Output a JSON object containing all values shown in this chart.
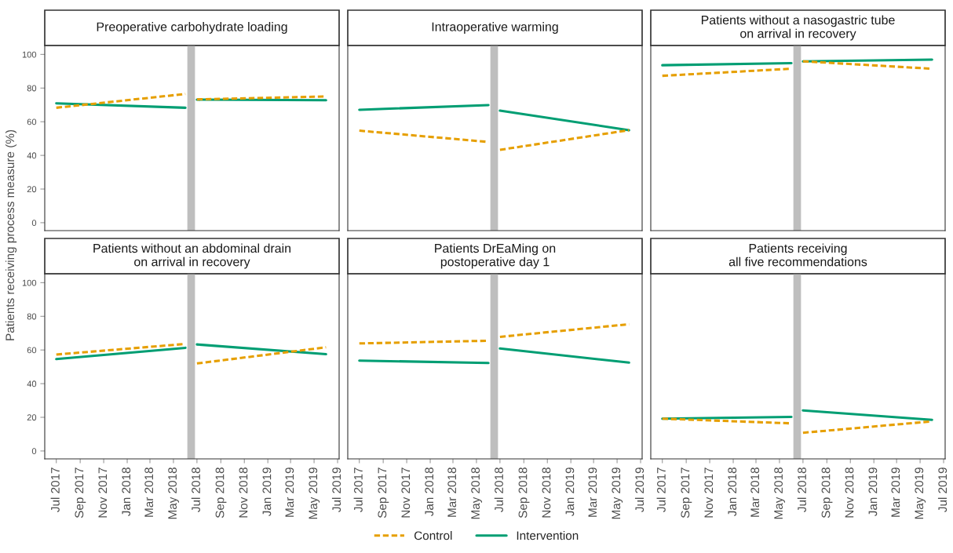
{
  "chart_data": [
    {
      "type": "line",
      "title": "Preoperative carbohydrate loading",
      "ylabel": "Patients receiving process measure (%)",
      "legend": "bottom",
      "tick_labels": "y",
      "grid": false,
      "x": [
        "2017-07-01",
        "2018-06-01",
        "2018-06-16",
        "2018-07-01",
        "2019-06-01"
      ],
      "series": [
        {
          "name": "Control",
          "color": "#e69f00",
          "line_style": "dashed",
          "values": [
            68.3,
            76.5,
            null,
            73.3,
            75.0
          ]
        },
        {
          "name": "Intervention",
          "color": "#009e73",
          "line_style": "solid",
          "values": [
            70.9,
            68.3,
            null,
            73.1,
            72.8
          ]
        }
      ],
      "ref_lines": [
        {
          "axis": "x",
          "value": "2018-06-16",
          "color": "#bebebe"
        }
      ],
      "xlim": [
        "2017-06-01",
        "2019-07-05"
      ],
      "ylim": [
        -4.7,
        105.3
      ],
      "yticks": [
        0,
        20,
        40,
        60,
        80,
        100
      ],
      "xticks": [
        {
          "value": "2017-07-01",
          "label": "Jul 2017"
        },
        {
          "value": "2017-09-01",
          "label": "Sep 2017"
        },
        {
          "value": "2017-11-01",
          "label": "Nov 2017"
        },
        {
          "value": "2018-01-01",
          "label": "Jan 2018"
        },
        {
          "value": "2018-03-01",
          "label": "Mar 2018"
        },
        {
          "value": "2018-05-01",
          "label": "May 2018"
        },
        {
          "value": "2018-07-01",
          "label": "Jul 2018"
        },
        {
          "value": "2018-09-01",
          "label": "Sep 2018"
        },
        {
          "value": "2018-11-01",
          "label": "Nov 2018"
        },
        {
          "value": "2019-01-01",
          "label": "Jan 2019"
        },
        {
          "value": "2019-03-01",
          "label": "Mar 2019"
        },
        {
          "value": "2019-05-01",
          "label": "May 2019"
        },
        {
          "value": "2019-07-01",
          "label": "Jul 2019"
        }
      ]
    },
    {
      "type": "line",
      "title": "Intraoperative warming",
      "tick_labels": false,
      "grid": false,
      "x": [
        "2017-07-01",
        "2018-06-01",
        "2018-06-16",
        "2018-07-01",
        "2019-06-01"
      ],
      "series": [
        {
          "name": "Control",
          "color": "#e69f00",
          "line_style": "dashed",
          "values": [
            54.7,
            48.0,
            null,
            43.3,
            55.0
          ]
        },
        {
          "name": "Intervention",
          "color": "#009e73",
          "line_style": "solid",
          "values": [
            67.1,
            69.9,
            null,
            66.6,
            55.0
          ]
        }
      ],
      "ref_lines": [
        {
          "axis": "x",
          "value": "2018-06-16",
          "color": "#bebebe"
        }
      ],
      "xlim": [
        "2017-06-01",
        "2019-07-05"
      ],
      "ylim": [
        -4.7,
        105.3
      ],
      "yticks": [
        0,
        20,
        40,
        60,
        80,
        100
      ],
      "xticks": [
        {
          "value": "2017-07-01",
          "label": "Jul 2017"
        },
        {
          "value": "2017-09-01",
          "label": "Sep 2017"
        },
        {
          "value": "2017-11-01",
          "label": "Nov 2017"
        },
        {
          "value": "2018-01-01",
          "label": "Jan 2018"
        },
        {
          "value": "2018-03-01",
          "label": "Mar 2018"
        },
        {
          "value": "2018-05-01",
          "label": "May 2018"
        },
        {
          "value": "2018-07-01",
          "label": "Jul 2018"
        },
        {
          "value": "2018-09-01",
          "label": "Sep 2018"
        },
        {
          "value": "2018-11-01",
          "label": "Nov 2018"
        },
        {
          "value": "2019-01-01",
          "label": "Jan 2019"
        },
        {
          "value": "2019-03-01",
          "label": "Mar 2019"
        },
        {
          "value": "2019-05-01",
          "label": "May 2019"
        },
        {
          "value": "2019-07-01",
          "label": "Jul 2019"
        }
      ]
    },
    {
      "type": "line",
      "title": "Patients without a nasogastric tube\non arrival in recovery",
      "tick_labels": false,
      "grid": false,
      "x": [
        "2017-07-01",
        "2018-06-01",
        "2018-06-16",
        "2018-07-01",
        "2019-06-01"
      ],
      "series": [
        {
          "name": "Control",
          "color": "#e69f00",
          "line_style": "dashed",
          "values": [
            87.3,
            91.5,
            null,
            95.9,
            91.5
          ]
        },
        {
          "name": "Intervention",
          "color": "#009e73",
          "line_style": "solid",
          "values": [
            93.6,
            94.8,
            null,
            95.9,
            96.9
          ]
        }
      ],
      "ref_lines": [
        {
          "axis": "x",
          "value": "2018-06-16",
          "color": "#bebebe"
        }
      ],
      "xlim": [
        "2017-06-01",
        "2019-07-05"
      ],
      "ylim": [
        -4.7,
        105.3
      ],
      "yticks": [
        0,
        20,
        40,
        60,
        80,
        100
      ],
      "xticks": [
        {
          "value": "2017-07-01",
          "label": "Jul 2017"
        },
        {
          "value": "2017-09-01",
          "label": "Sep 2017"
        },
        {
          "value": "2017-11-01",
          "label": "Nov 2017"
        },
        {
          "value": "2018-01-01",
          "label": "Jan 2018"
        },
        {
          "value": "2018-03-01",
          "label": "Mar 2018"
        },
        {
          "value": "2018-05-01",
          "label": "May 2018"
        },
        {
          "value": "2018-07-01",
          "label": "Jul 2018"
        },
        {
          "value": "2018-09-01",
          "label": "Sep 2018"
        },
        {
          "value": "2018-11-01",
          "label": "Nov 2018"
        },
        {
          "value": "2019-01-01",
          "label": "Jan 2019"
        },
        {
          "value": "2019-03-01",
          "label": "Mar 2019"
        },
        {
          "value": "2019-05-01",
          "label": "May 2019"
        },
        {
          "value": "2019-07-01",
          "label": "Jul 2019"
        }
      ]
    },
    {
      "type": "line",
      "title": "Patients without an abdominal drain\non arrival in recovery",
      "grid": false,
      "x": [
        "2017-07-01",
        "2018-06-01",
        "2018-06-16",
        "2018-07-01",
        "2019-06-01"
      ],
      "series": [
        {
          "name": "Control",
          "color": "#e69f00",
          "line_style": "dashed",
          "values": [
            57.3,
            63.6,
            null,
            52.0,
            61.6
          ]
        },
        {
          "name": "Intervention",
          "color": "#009e73",
          "line_style": "solid",
          "values": [
            54.6,
            61.3,
            null,
            63.3,
            57.5
          ]
        }
      ],
      "ref_lines": [
        {
          "axis": "x",
          "value": "2018-06-16",
          "color": "#bebebe"
        }
      ],
      "xlim": [
        "2017-06-01",
        "2019-07-05"
      ],
      "ylim": [
        -4.7,
        105.3
      ],
      "yticks": [
        0,
        20,
        40,
        60,
        80,
        100
      ],
      "xticks": [
        {
          "value": "2017-07-01",
          "label": "Jul 2017"
        },
        {
          "value": "2017-09-01",
          "label": "Sep 2017"
        },
        {
          "value": "2017-11-01",
          "label": "Nov 2017"
        },
        {
          "value": "2018-01-01",
          "label": "Jan 2018"
        },
        {
          "value": "2018-03-01",
          "label": "Mar 2018"
        },
        {
          "value": "2018-05-01",
          "label": "May 2018"
        },
        {
          "value": "2018-07-01",
          "label": "Jul 2018"
        },
        {
          "value": "2018-09-01",
          "label": "Sep 2018"
        },
        {
          "value": "2018-11-01",
          "label": "Nov 2018"
        },
        {
          "value": "2019-01-01",
          "label": "Jan 2019"
        },
        {
          "value": "2019-03-01",
          "label": "Mar 2019"
        },
        {
          "value": "2019-05-01",
          "label": "May 2019"
        },
        {
          "value": "2019-07-01",
          "label": "Jul 2019"
        }
      ]
    },
    {
      "type": "line",
      "title": "Patients DrEaMing on\npostoperative day 1",
      "tick_labels": "x",
      "grid": false,
      "x": [
        "2017-07-01",
        "2018-06-01",
        "2018-06-16",
        "2018-07-01",
        "2019-06-01"
      ],
      "series": [
        {
          "name": "Control",
          "color": "#e69f00",
          "line_style": "dashed",
          "values": [
            63.9,
            65.5,
            null,
            67.8,
            75.3
          ]
        },
        {
          "name": "Intervention",
          "color": "#009e73",
          "line_style": "solid",
          "values": [
            53.7,
            52.3,
            null,
            60.9,
            52.5
          ]
        }
      ],
      "ref_lines": [
        {
          "axis": "x",
          "value": "2018-06-16",
          "color": "#bebebe"
        }
      ],
      "xlim": [
        "2017-06-01",
        "2019-07-05"
      ],
      "ylim": [
        -4.7,
        105.3
      ],
      "yticks": [
        0,
        20,
        40,
        60,
        80,
        100
      ],
      "xticks": [
        {
          "value": "2017-07-01",
          "label": "Jul 2017"
        },
        {
          "value": "2017-09-01",
          "label": "Sep 2017"
        },
        {
          "value": "2017-11-01",
          "label": "Nov 2017"
        },
        {
          "value": "2018-01-01",
          "label": "Jan 2018"
        },
        {
          "value": "2018-03-01",
          "label": "Mar 2018"
        },
        {
          "value": "2018-05-01",
          "label": "May 2018"
        },
        {
          "value": "2018-07-01",
          "label": "Jul 2018"
        },
        {
          "value": "2018-09-01",
          "label": "Sep 2018"
        },
        {
          "value": "2018-11-01",
          "label": "Nov 2018"
        },
        {
          "value": "2019-01-01",
          "label": "Jan 2019"
        },
        {
          "value": "2019-03-01",
          "label": "Mar 2019"
        },
        {
          "value": "2019-05-01",
          "label": "May 2019"
        },
        {
          "value": "2019-07-01",
          "label": "Jul 2019"
        }
      ]
    },
    {
      "type": "line",
      "title": "Patients receiving\nall five recommendations",
      "tick_labels": "x",
      "grid": false,
      "x": [
        "2017-07-01",
        "2018-06-01",
        "2018-06-16",
        "2018-07-01",
        "2019-06-01"
      ],
      "series": [
        {
          "name": "Control",
          "color": "#e69f00",
          "line_style": "dashed",
          "values": [
            19.2,
            16.4,
            null,
            10.8,
            17.6
          ]
        },
        {
          "name": "Intervention",
          "color": "#009e73",
          "line_style": "solid",
          "values": [
            19.2,
            20.2,
            null,
            24.1,
            18.5
          ]
        }
      ],
      "ref_lines": [
        {
          "axis": "x",
          "value": "2018-06-16",
          "color": "#bebebe"
        }
      ],
      "xlim": [
        "2017-06-01",
        "2019-07-05"
      ],
      "ylim": [
        -4.7,
        105.3
      ],
      "yticks": [
        0,
        20,
        40,
        60,
        80,
        100
      ],
      "xticks": [
        {
          "value": "2017-07-01",
          "label": "Jul 2017"
        },
        {
          "value": "2017-09-01",
          "label": "Sep 2017"
        },
        {
          "value": "2017-11-01",
          "label": "Nov 2017"
        },
        {
          "value": "2018-01-01",
          "label": "Jan 2018"
        },
        {
          "value": "2018-03-01",
          "label": "Mar 2018"
        },
        {
          "value": "2018-05-01",
          "label": "May 2018"
        },
        {
          "value": "2018-07-01",
          "label": "Jul 2018"
        },
        {
          "value": "2018-09-01",
          "label": "Sep 2018"
        },
        {
          "value": "2018-11-01",
          "label": "Nov 2018"
        },
        {
          "value": "2019-01-01",
          "label": "Jan 2019"
        },
        {
          "value": "2019-03-01",
          "label": "Mar 2019"
        },
        {
          "value": "2019-05-01",
          "label": "May 2019"
        },
        {
          "value": "2019-07-01",
          "label": "Jul 2019"
        }
      ]
    }
  ]
}
